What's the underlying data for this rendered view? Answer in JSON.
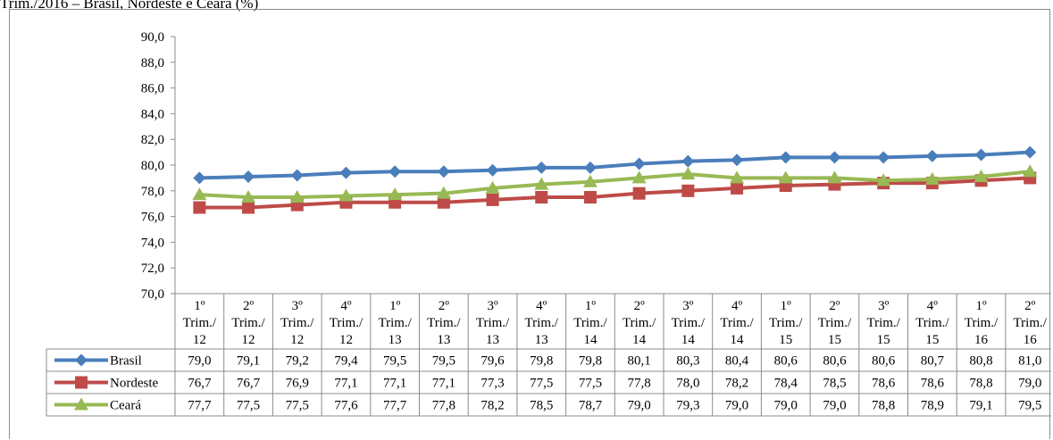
{
  "title": "Trim./2016 – Brasil, Nordeste e Ceará (%)",
  "chart_data": {
    "type": "line",
    "categories": [
      [
        "1º",
        "Trim./",
        "12"
      ],
      [
        "2º",
        "Trim./",
        "12"
      ],
      [
        "3º",
        "Trim./",
        "12"
      ],
      [
        "4º",
        "Trim./",
        "12"
      ],
      [
        "1º",
        "Trim./",
        "13"
      ],
      [
        "2º",
        "Trim./",
        "13"
      ],
      [
        "3º",
        "Trim./",
        "13"
      ],
      [
        "4º",
        "Trim./",
        "13"
      ],
      [
        "1º",
        "Trim./",
        "14"
      ],
      [
        "2º",
        "Trim./",
        "14"
      ],
      [
        "3º",
        "Trim./",
        "14"
      ],
      [
        "4º",
        "Trim./",
        "14"
      ],
      [
        "1º",
        "Trim./",
        "15"
      ],
      [
        "2º",
        "Trim./",
        "15"
      ],
      [
        "3º",
        "Trim./",
        "15"
      ],
      [
        "4º",
        "Trim./",
        "15"
      ],
      [
        "1º",
        "Trim./",
        "16"
      ],
      [
        "2º",
        "Trim./",
        "16"
      ]
    ],
    "ylim": [
      70,
      90
    ],
    "yticks": [
      "70,0",
      "72,0",
      "74,0",
      "76,0",
      "78,0",
      "80,0",
      "82,0",
      "84,0",
      "86,0",
      "88,0",
      "90,0"
    ],
    "grid": false,
    "legend": "data-table",
    "series": [
      {
        "name": "Brasil",
        "color": "#4a7ebb",
        "marker": "diamond",
        "values": [
          79.0,
          79.1,
          79.2,
          79.4,
          79.5,
          79.5,
          79.6,
          79.8,
          79.8,
          80.1,
          80.3,
          80.4,
          80.6,
          80.6,
          80.6,
          80.7,
          80.8,
          81.0
        ],
        "labels": [
          "79,0",
          "79,1",
          "79,2",
          "79,4",
          "79,5",
          "79,5",
          "79,6",
          "79,8",
          "79,8",
          "80,1",
          "80,3",
          "80,4",
          "80,6",
          "80,6",
          "80,6",
          "80,7",
          "80,8",
          "81,0"
        ]
      },
      {
        "name": "Nordeste",
        "color": "#be4b48",
        "marker": "square",
        "values": [
          76.7,
          76.7,
          76.9,
          77.1,
          77.1,
          77.1,
          77.3,
          77.5,
          77.5,
          77.8,
          78.0,
          78.2,
          78.4,
          78.5,
          78.6,
          78.6,
          78.8,
          79.0
        ],
        "labels": [
          "76,7",
          "76,7",
          "76,9",
          "77,1",
          "77,1",
          "77,1",
          "77,3",
          "77,5",
          "77,5",
          "77,8",
          "78,0",
          "78,2",
          "78,4",
          "78,5",
          "78,6",
          "78,6",
          "78,8",
          "79,0"
        ]
      },
      {
        "name": "Ceará",
        "color": "#98b954",
        "marker": "triangle",
        "values": [
          77.7,
          77.5,
          77.5,
          77.6,
          77.7,
          77.8,
          78.2,
          78.5,
          78.7,
          79.0,
          79.3,
          79.0,
          79.0,
          79.0,
          78.8,
          78.9,
          79.1,
          79.5
        ],
        "labels": [
          "77,7",
          "77,5",
          "77,5",
          "77,6",
          "77,7",
          "77,8",
          "78,2",
          "78,5",
          "78,7",
          "79,0",
          "79,3",
          "79,0",
          "79,0",
          "79,0",
          "78,8",
          "78,9",
          "79,1",
          "79,5"
        ]
      }
    ]
  }
}
